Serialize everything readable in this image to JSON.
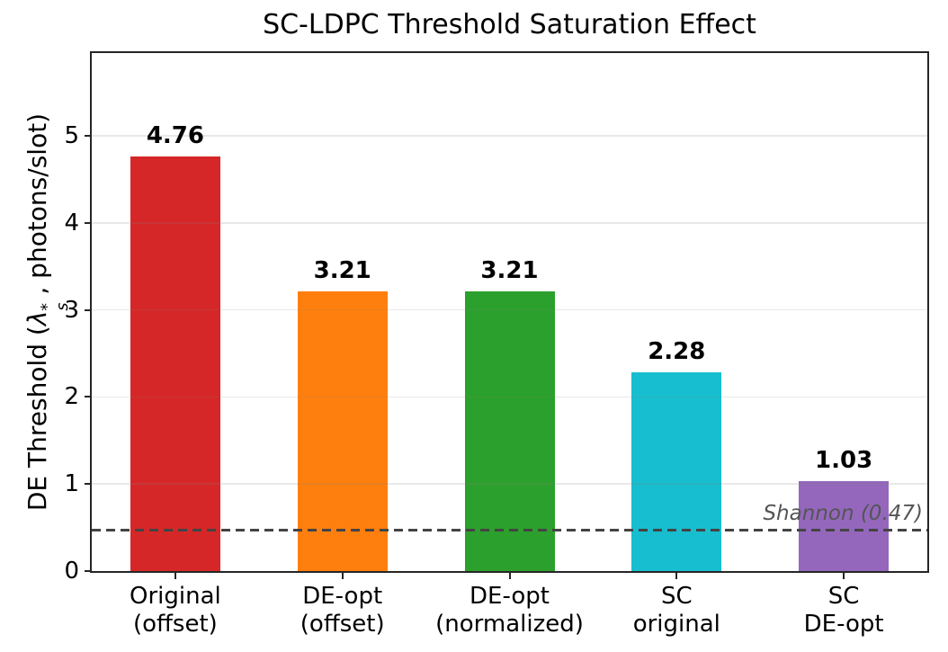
{
  "title": "SC-LDPC Threshold Saturation Effect",
  "y_axis": {
    "label_prefix": "DE Threshold (",
    "lambda": "λ",
    "sup": "*",
    "sub": "s",
    "label_suffix": " , photons/slot)"
  },
  "chart_data": {
    "type": "bar",
    "title": "SC-LDPC Threshold Saturation Effect",
    "ylabel": "DE Threshold (lambda_s^*, photons/slot)",
    "xlabel": "",
    "categories": [
      [
        "Original",
        "(offset)"
      ],
      [
        "DE-opt",
        "(offset)"
      ],
      [
        "DE-opt",
        "(normalized)"
      ],
      [
        "SC",
        "original"
      ],
      [
        "SC",
        "DE-opt"
      ]
    ],
    "values": [
      4.76,
      3.21,
      3.21,
      2.28,
      1.03
    ],
    "value_labels": [
      "4.76",
      "3.21",
      "3.21",
      "2.28",
      "1.03"
    ],
    "bar_colors": [
      "#d62728",
      "#ff7f0e",
      "#2ca02c",
      "#17becf",
      "#9467bd"
    ],
    "ylim": [
      0,
      5.95
    ],
    "yticks": [
      0,
      1,
      2,
      3,
      4,
      5
    ],
    "ytick_labels": [
      "0",
      "1",
      "2",
      "3",
      "4",
      "5"
    ],
    "grid": true,
    "grid_color": "rgba(128,128,128,0.18)",
    "legend": "none",
    "frame_color": "#262626",
    "reference_line": {
      "value": 0.47,
      "label": "Shannon (0.47)",
      "style": "dashed",
      "color": "#444444",
      "label_color": "#555555"
    }
  }
}
